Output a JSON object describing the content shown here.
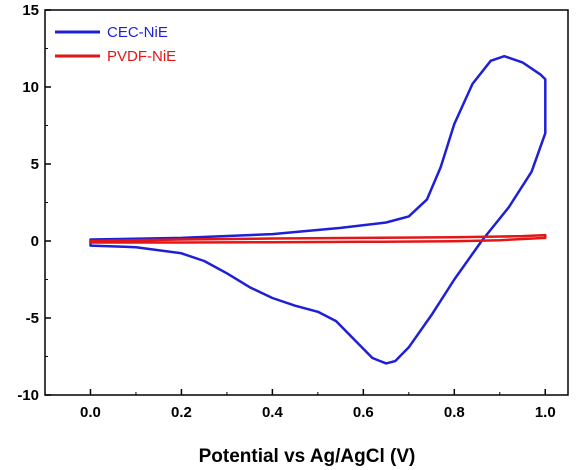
{
  "chart_data": {
    "type": "line",
    "title": "",
    "xlabel": "Potential vs Ag/AgCl (V)",
    "ylabel": "",
    "xlim": [
      -0.1,
      1.05
    ],
    "ylim": [
      -10,
      15
    ],
    "xticks": [
      "0.0",
      "0.2",
      "0.4",
      "0.6",
      "0.8",
      "1.0"
    ],
    "xtick_values": [
      0.0,
      0.2,
      0.4,
      0.6,
      0.8,
      1.0
    ],
    "yticks": [
      "-10",
      "-5",
      "0",
      "5",
      "10",
      "15"
    ],
    "ytick_values": [
      -10,
      -5,
      0,
      5,
      10,
      15
    ],
    "grid": false,
    "legend_position": "top-left",
    "series": [
      {
        "name": "CEC-NiE",
        "color": "#1f1fd6",
        "points": [
          [
            0.0,
            0.1
          ],
          [
            0.2,
            0.2
          ],
          [
            0.4,
            0.45
          ],
          [
            0.55,
            0.85
          ],
          [
            0.65,
            1.2
          ],
          [
            0.7,
            1.6
          ],
          [
            0.74,
            2.7
          ],
          [
            0.77,
            4.8
          ],
          [
            0.8,
            7.6
          ],
          [
            0.84,
            10.2
          ],
          [
            0.88,
            11.7
          ],
          [
            0.91,
            12.0
          ],
          [
            0.95,
            11.6
          ],
          [
            0.99,
            10.8
          ],
          [
            1.0,
            10.5
          ],
          [
            1.0,
            7.0
          ],
          [
            0.97,
            4.5
          ],
          [
            0.92,
            2.2
          ],
          [
            0.86,
            0.0
          ],
          [
            0.8,
            -2.5
          ],
          [
            0.75,
            -4.8
          ],
          [
            0.7,
            -6.9
          ],
          [
            0.67,
            -7.8
          ],
          [
            0.65,
            -7.95
          ],
          [
            0.62,
            -7.6
          ],
          [
            0.58,
            -6.4
          ],
          [
            0.54,
            -5.2
          ],
          [
            0.5,
            -4.6
          ],
          [
            0.45,
            -4.2
          ],
          [
            0.4,
            -3.7
          ],
          [
            0.35,
            -3.0
          ],
          [
            0.3,
            -2.1
          ],
          [
            0.25,
            -1.3
          ],
          [
            0.2,
            -0.8
          ],
          [
            0.1,
            -0.4
          ],
          [
            0.0,
            -0.3
          ],
          [
            0.0,
            0.1
          ]
        ]
      },
      {
        "name": "PVDF-NiE",
        "color": "#e21616",
        "points": [
          [
            0.0,
            0.0
          ],
          [
            0.2,
            0.1
          ],
          [
            0.4,
            0.16
          ],
          [
            0.6,
            0.2
          ],
          [
            0.8,
            0.25
          ],
          [
            0.95,
            0.32
          ],
          [
            1.0,
            0.38
          ],
          [
            1.0,
            0.2
          ],
          [
            0.9,
            0.05
          ],
          [
            0.8,
            -0.02
          ],
          [
            0.6,
            -0.05
          ],
          [
            0.4,
            -0.08
          ],
          [
            0.2,
            -0.1
          ],
          [
            0.0,
            -0.1
          ],
          [
            0.0,
            0.0
          ]
        ]
      }
    ]
  }
}
